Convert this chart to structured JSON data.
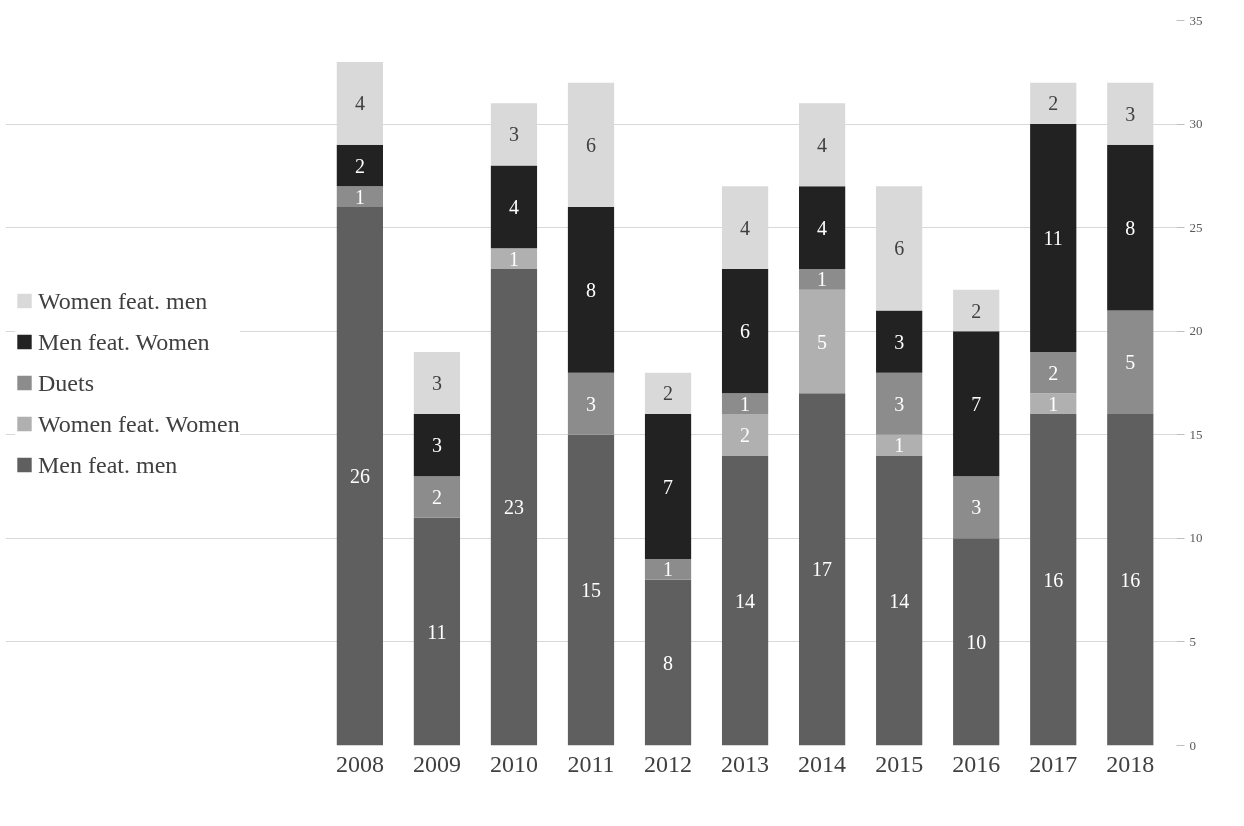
{
  "chart_data": {
    "type": "bar",
    "stacked": true,
    "data_labels": true,
    "grid": "y",
    "legend": "left",
    "categories": [
      "2008",
      "2009",
      "2010",
      "2011",
      "2012",
      "2013",
      "2014",
      "2015",
      "2016",
      "2017",
      "2018"
    ],
    "ylim": [
      0,
      35
    ],
    "yticks": [
      0,
      5,
      10,
      15,
      20,
      25,
      30,
      35
    ],
    "series": [
      {
        "name": "Men feat. men",
        "color": "#5f5f5f",
        "values": [
          26,
          11,
          23,
          15,
          8,
          14,
          17,
          14,
          10,
          16,
          16
        ]
      },
      {
        "name": "Women feat. Women",
        "color": "#b0b0b0",
        "values": [
          null,
          null,
          1,
          null,
          null,
          2,
          5,
          1,
          null,
          1,
          null
        ]
      },
      {
        "name": "Duets",
        "color": "#8c8c8c",
        "values": [
          1,
          2,
          null,
          3,
          1,
          1,
          1,
          3,
          3,
          2,
          5
        ]
      },
      {
        "name": "Men feat. Women",
        "color": "#222222",
        "values": [
          2,
          3,
          4,
          8,
          7,
          6,
          4,
          3,
          7,
          11,
          8
        ]
      },
      {
        "name": "Women feat. men",
        "color": "#d9d9d9",
        "values": [
          4,
          3,
          3,
          6,
          2,
          4,
          4,
          6,
          2,
          2,
          3
        ]
      }
    ]
  }
}
